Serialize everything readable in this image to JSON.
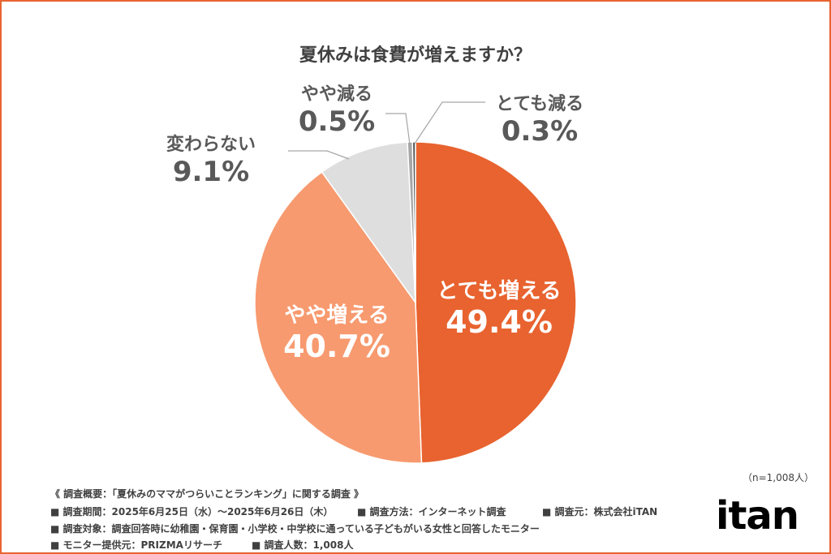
{
  "chart_data": {
    "type": "pie",
    "title": "夏休みは食費が増えますか？",
    "start": "top",
    "direction": "clockwise",
    "slices": [
      {
        "label": "とても増える",
        "value": 49.4,
        "display": "49.4%",
        "color": "#E8632F"
      },
      {
        "label": "やや増える",
        "value": 40.7,
        "display": "40.7%",
        "color": "#F79A6F"
      },
      {
        "label": "変わらない",
        "value": 9.1,
        "display": "9.1%",
        "color": "#DEDEDE"
      },
      {
        "label": "やや減る",
        "value": 0.5,
        "display": "0.5%",
        "color": "#A6A6A6"
      },
      {
        "label": "とても減る",
        "value": 0.3,
        "display": "0.3%",
        "color": "#595959"
      }
    ]
  },
  "sample_size": "（n=1,008人）",
  "footer": {
    "heading": "《 調査概要：「夏休みのママがつらいことランキング」に関する調査 》",
    "period": "■ 調査期間：2025年6月25日（水）〜2025年6月26日（木）",
    "method": "■ 調査方法：インターネット調査",
    "source": "■ 調査元：株式会社iTAN",
    "target": "■ 調査対象：調査回答時に幼稚園・保育園・小学校・中学校に通っている子どもがいる女性と回答したモニター",
    "provider": "■ モニター提供元：PRIZMAリサーチ",
    "count": "■ 調査人数：1,008人"
  },
  "logo": "itan",
  "border_color": "#E8632F"
}
